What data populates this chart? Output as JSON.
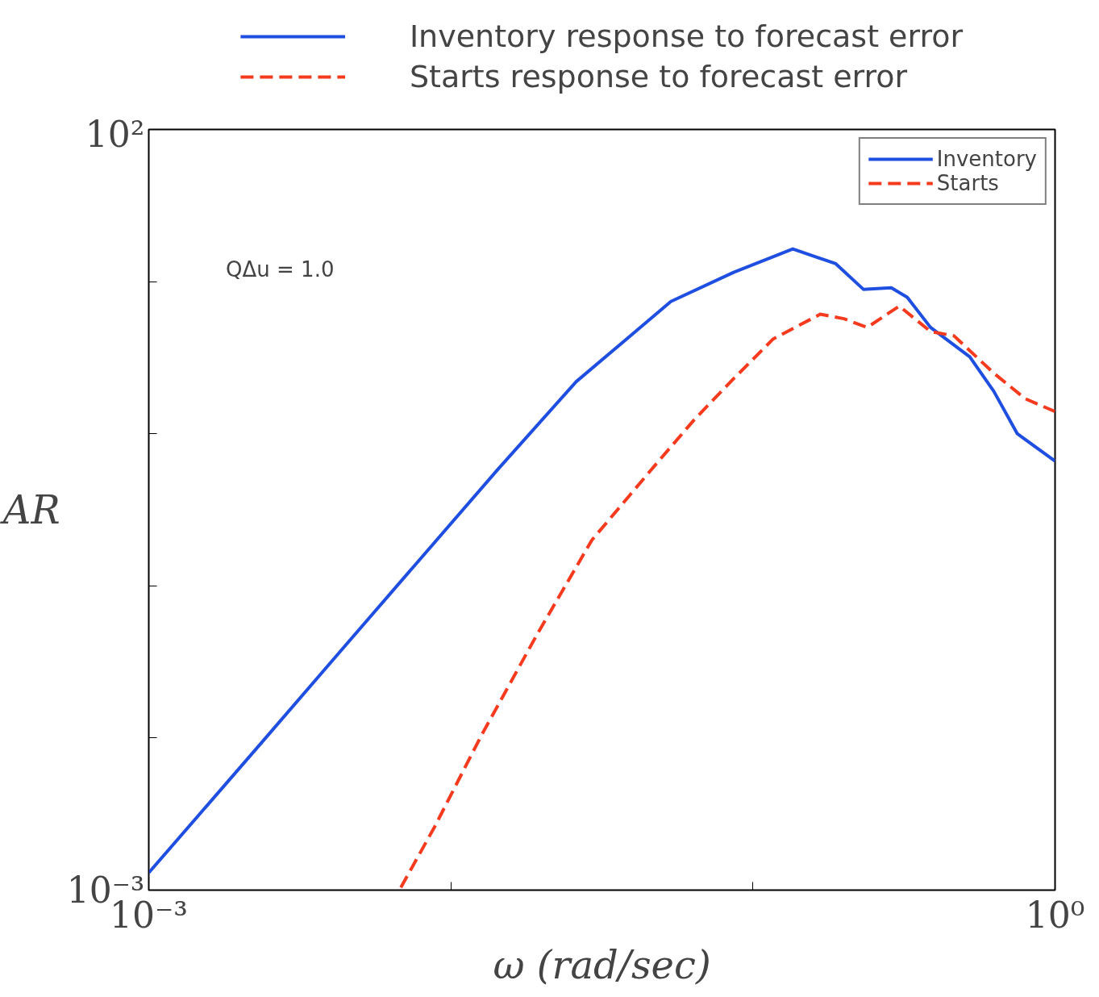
{
  "chart_data": {
    "type": "line",
    "xlabel": "ω (rad/sec)",
    "ylabel": "AR",
    "log": "xy",
    "xlim": [
      0.001,
      1
    ],
    "ylim": [
      0.001,
      100
    ],
    "xticks": [
      {
        "value": 0.001,
        "label": "10⁻³"
      },
      {
        "value": 0.01,
        "label": null
      },
      {
        "value": 0.1,
        "label": null
      },
      {
        "value": 1,
        "label": "10⁰"
      }
    ],
    "yticks": [
      {
        "value": 0.001,
        "label": "10⁻³"
      },
      {
        "value": 0.01,
        "label": null
      },
      {
        "value": 0.1,
        "label": null
      },
      {
        "value": 1,
        "label": null
      },
      {
        "value": 10,
        "label": null
      },
      {
        "value": 100,
        "label": "10²"
      }
    ],
    "grid": false,
    "legend": "top right",
    "annotations": [
      "Inventory response to forecast error",
      "Starts response to forecast error",
      "QΔu = 1.0"
    ],
    "series": [
      {
        "name": "Inventory",
        "color": "#1f4fe0",
        "line_style": "solid",
        "x": [
          0.001,
          0.00236,
          0.0043,
          0.01427,
          0.026,
          0.0535,
          0.0863,
          0.1355,
          0.188,
          0.232,
          0.287,
          0.324,
          0.387,
          0.522,
          0.627,
          0.75,
          1
        ],
        "values": [
          0.0013,
          0.0093,
          0.037,
          0.58,
          2.2,
          7.4,
          11.5,
          16.4,
          13.1,
          8.9,
          9.1,
          7.9,
          5.0,
          3.2,
          1.9,
          1.0,
          0.66
        ]
      },
      {
        "name": "Starts",
        "color": "#f53a1e",
        "line_style": "dashed",
        "x": [
          0.00683,
          0.00883,
          0.01265,
          0.0193,
          0.0293,
          0.0474,
          0.064,
          0.0863,
          0.1167,
          0.167,
          0.2,
          0.239,
          0.305,
          0.387,
          0.463,
          0.627,
          0.796,
          1
        ],
        "values": [
          0.00104,
          0.0026,
          0.0105,
          0.048,
          0.2,
          0.62,
          1.24,
          2.3,
          4.2,
          6.1,
          5.7,
          5.0,
          6.9,
          4.7,
          4.4,
          2.5,
          1.7,
          1.4
        ]
      }
    ]
  }
}
